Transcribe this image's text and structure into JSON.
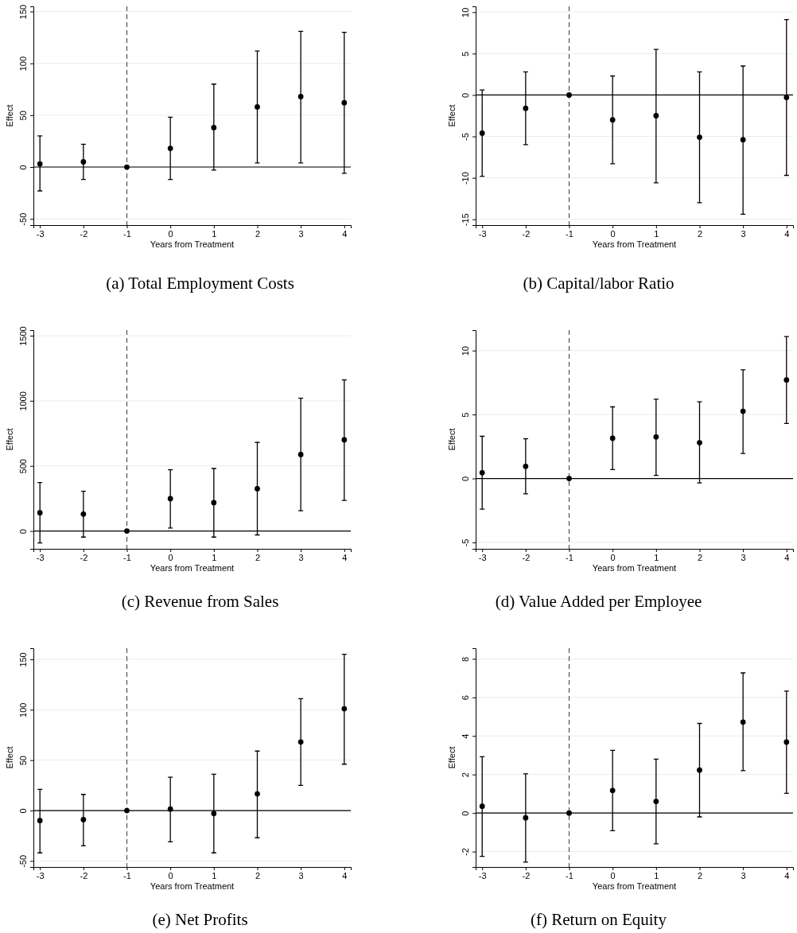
{
  "chart_data": [
    {
      "type": "scatter",
      "title": "(a) Total Employment Costs",
      "xlabel": "Years from Treatment",
      "ylabel": "Effect",
      "x": [
        -3,
        -2,
        -1,
        0,
        1,
        2,
        3,
        4
      ],
      "values": [
        3,
        5,
        0,
        18,
        38,
        58,
        68,
        62
      ],
      "errors": [
        [
          -23,
          30
        ],
        [
          -12,
          22
        ],
        null,
        [
          -12,
          48
        ],
        [
          -3,
          80
        ],
        [
          4,
          112
        ],
        [
          4,
          131
        ],
        [
          -6,
          130
        ]
      ],
      "color": "#000000",
      "marker": "circle",
      "xlim": [
        -3.15,
        4.15
      ],
      "xticks": [
        -3,
        -2,
        -1,
        0,
        1,
        2,
        3,
        4
      ],
      "ylim": [
        -56,
        155
      ],
      "yticks": [
        -50,
        0,
        50,
        100,
        150
      ],
      "grid": "y",
      "ref_lines": [
        {
          "axis": "x",
          "value": -1,
          "line_style": "dashed",
          "color": "#555555"
        },
        {
          "axis": "y",
          "value": 0,
          "color": "#000000"
        }
      ]
    },
    {
      "type": "scatter",
      "title": "(b) Capital/labor Ratio",
      "xlabel": "Years from Treatment",
      "ylabel": "Effect",
      "x": [
        -3,
        -2,
        -1,
        0,
        1,
        2,
        3,
        4
      ],
      "values": [
        -4.6,
        -1.6,
        0,
        -3,
        -2.5,
        -5.1,
        -5.4,
        -0.3
      ],
      "errors": [
        [
          -9.8,
          0.6
        ],
        [
          -6,
          2.8
        ],
        null,
        [
          -8.3,
          2.3
        ],
        [
          -10.6,
          5.5
        ],
        [
          -13,
          2.8
        ],
        [
          -14.4,
          3.5
        ],
        [
          -9.7,
          9.1
        ]
      ],
      "color": "#000000",
      "marker": "circle",
      "xlim": [
        -3.15,
        4.15
      ],
      "xticks": [
        -3,
        -2,
        -1,
        0,
        1,
        2,
        3,
        4
      ],
      "ylim": [
        -15.7,
        10.7
      ],
      "yticks": [
        -15,
        -10,
        -5,
        0,
        5,
        10
      ],
      "grid": "y",
      "ref_lines": [
        {
          "axis": "x",
          "value": -1,
          "line_style": "dashed",
          "color": "#555555"
        },
        {
          "axis": "y",
          "value": 0,
          "color": "#000000"
        }
      ]
    },
    {
      "type": "scatter",
      "title": "(c) Revenue from Sales",
      "xlabel": "Years from Treatment",
      "ylabel": "Effect",
      "x": [
        -3,
        -2,
        -1,
        0,
        1,
        2,
        3,
        4
      ],
      "values": [
        140,
        130,
        0,
        248,
        218,
        325,
        587,
        700
      ],
      "errors": [
        [
          -92,
          372
        ],
        [
          -47,
          305
        ],
        null,
        [
          22,
          470
        ],
        [
          -47,
          480
        ],
        [
          -30,
          680
        ],
        [
          155,
          1020
        ],
        [
          235,
          1160
        ]
      ],
      "color": "#000000",
      "marker": "circle",
      "xlim": [
        -3.15,
        4.15
      ],
      "xticks": [
        -3,
        -2,
        -1,
        0,
        1,
        2,
        3,
        4
      ],
      "ylim": [
        -137,
        1543
      ],
      "yticks": [
        0,
        500,
        1000,
        1500
      ],
      "grid": "y",
      "ref_lines": [
        {
          "axis": "x",
          "value": -1,
          "line_style": "dashed",
          "color": "#555555"
        },
        {
          "axis": "y",
          "value": 0,
          "color": "#000000"
        }
      ]
    },
    {
      "type": "scatter",
      "title": "(d) Value Added per Employee",
      "xlabel": "Years from Treatment",
      "ylabel": "Effect",
      "x": [
        -3,
        -2,
        -1,
        0,
        1,
        2,
        3,
        4
      ],
      "values": [
        0.45,
        0.95,
        0,
        3.15,
        3.25,
        2.8,
        5.25,
        7.7
      ],
      "errors": [
        [
          -2.4,
          3.3
        ],
        [
          -1.2,
          3.1
        ],
        null,
        [
          0.7,
          5.6
        ],
        [
          0.25,
          6.2
        ],
        [
          -0.35,
          6
        ],
        [
          1.95,
          8.5
        ],
        [
          4.3,
          11.1
        ]
      ],
      "color": "#000000",
      "marker": "circle",
      "xlim": [
        -3.15,
        4.15
      ],
      "xticks": [
        -3,
        -2,
        -1,
        0,
        1,
        2,
        3,
        4
      ],
      "ylim": [
        -5.5,
        11.6
      ],
      "yticks": [
        -5,
        0,
        5,
        10
      ],
      "grid": "y",
      "ref_lines": [
        {
          "axis": "x",
          "value": -1,
          "line_style": "dashed",
          "color": "#555555"
        },
        {
          "axis": "y",
          "value": 0,
          "color": "#000000"
        }
      ]
    },
    {
      "type": "scatter",
      "title": "(e) Net Profits",
      "xlabel": "Years from Treatment",
      "ylabel": "Effect",
      "x": [
        -3,
        -2,
        -1,
        0,
        1,
        2,
        3,
        4
      ],
      "values": [
        -10,
        -9,
        0,
        1.5,
        -3,
        16.5,
        68,
        101
      ],
      "errors": [
        [
          -42,
          21
        ],
        [
          -35,
          16
        ],
        null,
        [
          -31,
          33
        ],
        [
          -42,
          36
        ],
        [
          -27,
          59
        ],
        [
          25,
          111
        ],
        [
          46,
          155
        ]
      ],
      "color": "#000000",
      "marker": "circle",
      "xlim": [
        -3.15,
        4.15
      ],
      "xticks": [
        -3,
        -2,
        -1,
        0,
        1,
        2,
        3,
        4
      ],
      "ylim": [
        -56,
        161
      ],
      "yticks": [
        -50,
        0,
        50,
        100,
        150
      ],
      "grid": "y",
      "ref_lines": [
        {
          "axis": "x",
          "value": -1,
          "line_style": "dashed",
          "color": "#555555"
        },
        {
          "axis": "y",
          "value": 0,
          "color": "#000000"
        }
      ]
    },
    {
      "type": "scatter",
      "title": "(f) Return on Equity",
      "xlabel": "Years from Treatment",
      "ylabel": "Effect",
      "x": [
        -3,
        -2,
        -1,
        0,
        1,
        2,
        3,
        4
      ],
      "values": [
        0.35,
        -0.25,
        0,
        1.17,
        0.6,
        2.23,
        4.72,
        3.68
      ],
      "errors": [
        [
          -2.25,
          2.92
        ],
        [
          -2.55,
          2.03
        ],
        null,
        [
          -0.92,
          3.25
        ],
        [
          -1.6,
          2.8
        ],
        [
          -0.2,
          4.65
        ],
        [
          2.2,
          7.27
        ],
        [
          1.02,
          6.33
        ]
      ],
      "color": "#000000",
      "marker": "circle",
      "xlim": [
        -3.15,
        4.15
      ],
      "xticks": [
        -3,
        -2,
        -1,
        0,
        1,
        2,
        3,
        4
      ],
      "ylim": [
        -2.8,
        8.55
      ],
      "yticks": [
        -2,
        0,
        2,
        4,
        6,
        8
      ],
      "grid": "y",
      "ref_lines": [
        {
          "axis": "x",
          "value": -1,
          "line_style": "dashed",
          "color": "#555555"
        },
        {
          "axis": "y",
          "value": 0,
          "color": "#000000"
        }
      ]
    }
  ]
}
